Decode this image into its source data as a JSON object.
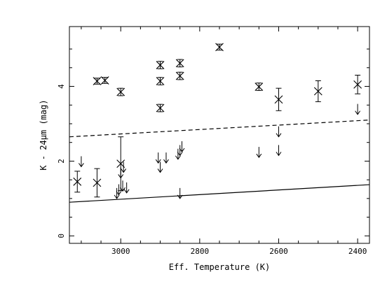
{
  "chart_data": {
    "type": "scatter",
    "title": "",
    "xlabel": "Eff. Temperature (K)",
    "ylabel": "K - 24μm (mag)",
    "xlim": [
      3130,
      2370
    ],
    "ylim": [
      -0.2,
      5.6
    ],
    "x_ticks": [
      3000,
      2800,
      2600,
      2400
    ],
    "y_ticks": [
      0,
      2,
      4
    ],
    "grid": false,
    "legend": "none",
    "detections": [
      {
        "x": 3110,
        "y": 1.45,
        "err": 0.28
      },
      {
        "x": 3060,
        "y": 1.42,
        "err": 0.38
      },
      {
        "x": 3000,
        "y": 1.93,
        "err": 0.72
      },
      {
        "x": 3060,
        "y": 4.14,
        "err": 0.08
      },
      {
        "x": 3040,
        "y": 4.16,
        "err": 0.08
      },
      {
        "x": 3000,
        "y": 3.85,
        "err": 0.1
      },
      {
        "x": 2900,
        "y": 4.57,
        "err": 0.1
      },
      {
        "x": 2900,
        "y": 4.14,
        "err": 0.1
      },
      {
        "x": 2900,
        "y": 3.42,
        "err": 0.1
      },
      {
        "x": 2850,
        "y": 4.62,
        "err": 0.1
      },
      {
        "x": 2850,
        "y": 4.28,
        "err": 0.1
      },
      {
        "x": 2750,
        "y": 5.05,
        "err": 0.08
      },
      {
        "x": 2650,
        "y": 3.99,
        "err": 0.1
      },
      {
        "x": 2600,
        "y": 3.65,
        "err": 0.3
      },
      {
        "x": 2500,
        "y": 3.87,
        "err": 0.28
      },
      {
        "x": 2400,
        "y": 4.05,
        "err": 0.25
      }
    ],
    "upper_limits": [
      {
        "x": 3100,
        "y": 1.85
      },
      {
        "x": 3010,
        "y": 1.0
      },
      {
        "x": 3005,
        "y": 1.1
      },
      {
        "x": 3000,
        "y": 1.55
      },
      {
        "x": 2995,
        "y": 1.2
      },
      {
        "x": 2993,
        "y": 1.7
      },
      {
        "x": 2985,
        "y": 1.15
      },
      {
        "x": 2905,
        "y": 1.95
      },
      {
        "x": 2900,
        "y": 1.7
      },
      {
        "x": 2885,
        "y": 1.95
      },
      {
        "x": 2855,
        "y": 2.05
      },
      {
        "x": 2850,
        "y": 2.15
      },
      {
        "x": 2845,
        "y": 2.25
      },
      {
        "x": 2850,
        "y": 1.0
      },
      {
        "x": 2650,
        "y": 2.1
      },
      {
        "x": 2600,
        "y": 2.65
      },
      {
        "x": 2600,
        "y": 2.15
      },
      {
        "x": 2400,
        "y": 3.25
      }
    ],
    "lines": [
      {
        "style": "dashed",
        "x": [
          3130,
          2370
        ],
        "y": [
          2.65,
          3.1
        ]
      },
      {
        "style": "solid",
        "x": [
          3130,
          2370
        ],
        "y": [
          0.9,
          1.37
        ]
      }
    ]
  }
}
